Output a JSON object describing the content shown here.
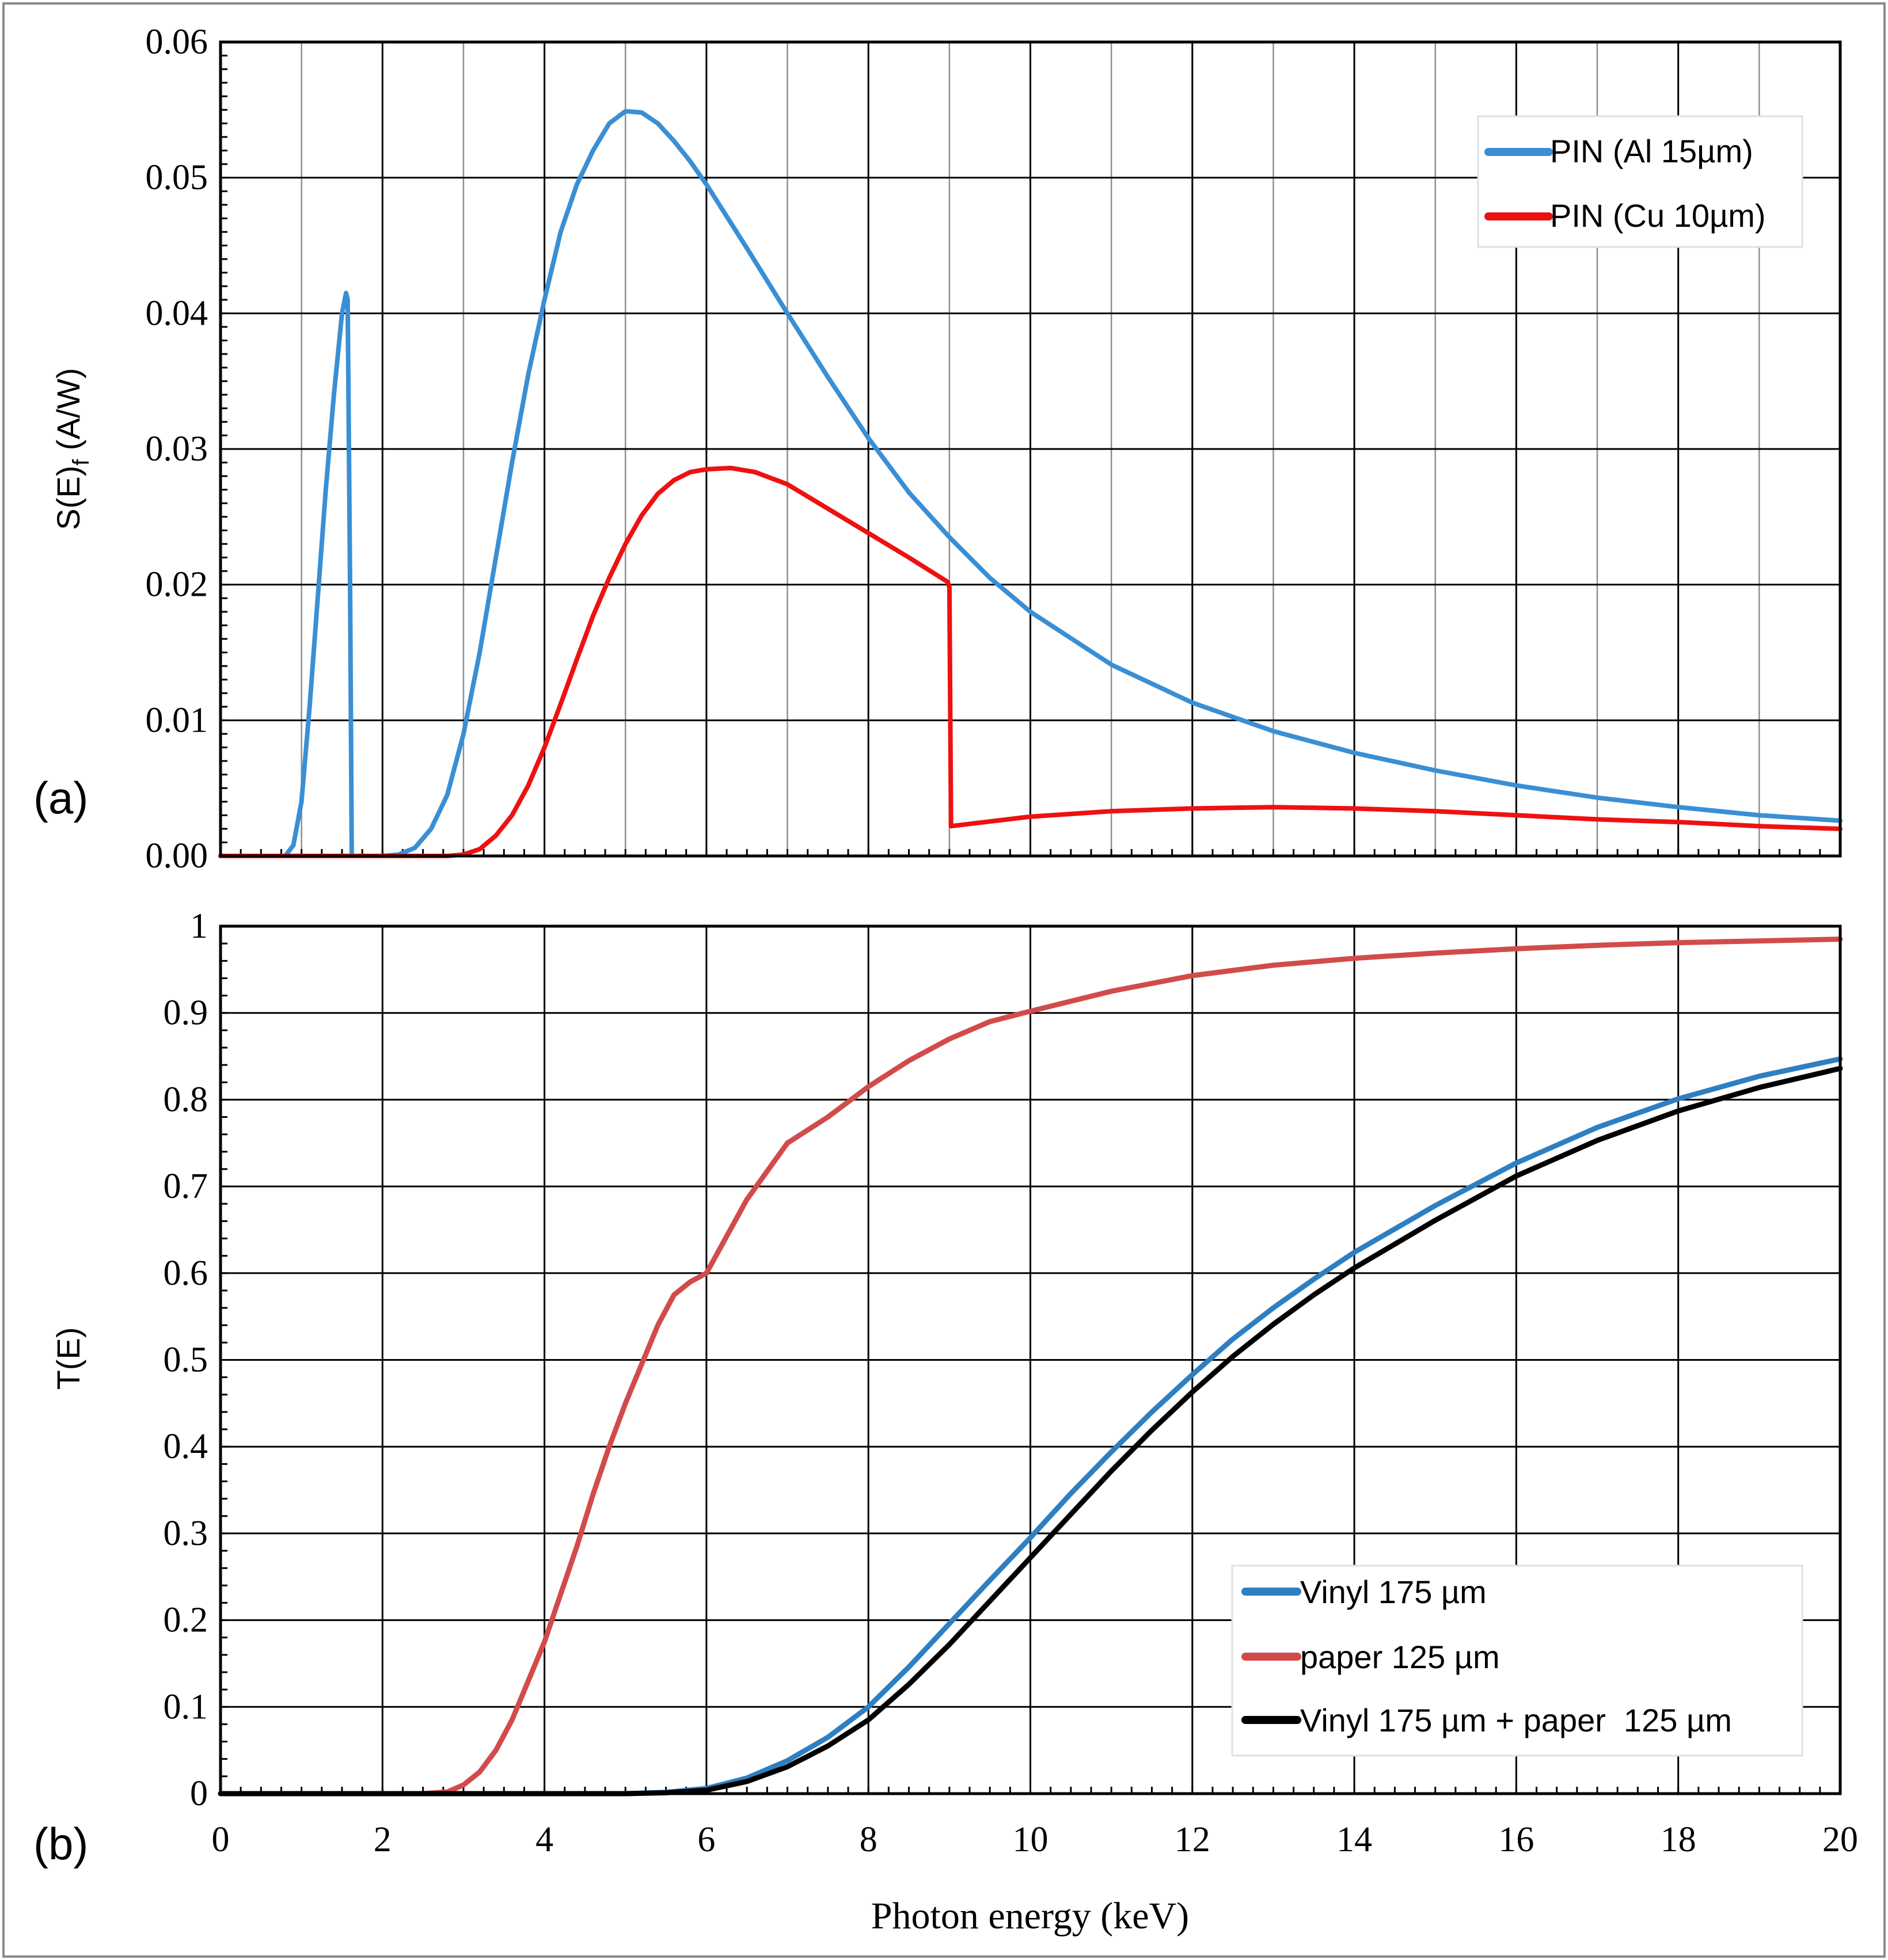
{
  "chart_data": [
    {
      "panel_label": "(a)",
      "type": "line",
      "title": "",
      "xlabel": "",
      "ylabel": "S(E)",
      "ylabel_subscript": "f",
      "ylabel_unit": "(A/W)",
      "xlim": [
        0,
        20
      ],
      "ylim": [
        0,
        0.06
      ],
      "x_ticks": [
        0,
        2,
        4,
        6,
        8,
        10,
        12,
        14,
        16,
        18,
        20
      ],
      "y_ticks": [
        0,
        0.01,
        0.02,
        0.03,
        0.04,
        0.05,
        0.06
      ],
      "y_tick_labels": [
        "0.00",
        "0.01",
        "0.02",
        "0.03",
        "0.04",
        "0.05",
        "0.06"
      ],
      "grid": true,
      "legend_position": "top-right",
      "series": [
        {
          "name": "PIN (Al 15µm)",
          "color": "#3a8fd4",
          "x": [
            0,
            0.8,
            0.9,
            1.0,
            1.1,
            1.2,
            1.3,
            1.4,
            1.5,
            1.55,
            1.57,
            1.6,
            1.62,
            1.8,
            2.0,
            2.2,
            2.4,
            2.6,
            2.8,
            3.0,
            3.2,
            3.4,
            3.6,
            3.8,
            4.0,
            4.2,
            4.4,
            4.6,
            4.8,
            5.0,
            5.2,
            5.4,
            5.6,
            5.8,
            6.0,
            6.5,
            7.0,
            7.5,
            8.0,
            8.5,
            9.0,
            9.5,
            10.0,
            11.0,
            12.0,
            13.0,
            14.0,
            15.0,
            16.0,
            17.0,
            18.0,
            19.0,
            20.0
          ],
          "values": [
            0,
            0,
            0.0008,
            0.004,
            0.011,
            0.019,
            0.027,
            0.034,
            0.04,
            0.0415,
            0.041,
            0.02,
            0,
            0,
            0,
            0.0001,
            0.0006,
            0.002,
            0.0045,
            0.009,
            0.015,
            0.022,
            0.029,
            0.0355,
            0.041,
            0.046,
            0.0495,
            0.052,
            0.054,
            0.0549,
            0.0548,
            0.054,
            0.0527,
            0.0512,
            0.0495,
            0.0448,
            0.04,
            0.0353,
            0.0308,
            0.0268,
            0.0235,
            0.0205,
            0.018,
            0.0141,
            0.0113,
            0.0092,
            0.0076,
            0.0063,
            0.0052,
            0.0043,
            0.0036,
            0.003,
            0.0026
          ]
        },
        {
          "name": "PIN (Cu 10µm)",
          "color": "#ee1111",
          "x": [
            0,
            2.8,
            3.0,
            3.2,
            3.4,
            3.6,
            3.8,
            4.0,
            4.2,
            4.4,
            4.6,
            4.8,
            5.0,
            5.2,
            5.4,
            5.6,
            5.8,
            6.0,
            6.3,
            6.6,
            7.0,
            7.5,
            8.0,
            8.5,
            8.98,
            9.0,
            9.02,
            10.0,
            11.0,
            12.0,
            13.0,
            14.0,
            15.0,
            16.0,
            17.0,
            18.0,
            19.0,
            20.0
          ],
          "values": [
            0,
            0,
            0.0001,
            0.0005,
            0.0015,
            0.003,
            0.0052,
            0.008,
            0.0112,
            0.0145,
            0.0177,
            0.0205,
            0.023,
            0.0251,
            0.0267,
            0.0277,
            0.0283,
            0.0285,
            0.0286,
            0.0283,
            0.0274,
            0.0256,
            0.0238,
            0.022,
            0.0202,
            0.0198,
            0.0022,
            0.0029,
            0.0033,
            0.0035,
            0.0036,
            0.0035,
            0.0033,
            0.003,
            0.0027,
            0.0025,
            0.0022,
            0.002
          ]
        }
      ]
    },
    {
      "panel_label": "(b)",
      "type": "line",
      "title": "",
      "xlabel": "Photon energy (keV)",
      "ylabel": "T(E)",
      "xlim": [
        0,
        20
      ],
      "ylim": [
        0,
        1
      ],
      "x_ticks": [
        0,
        2,
        4,
        6,
        8,
        10,
        12,
        14,
        16,
        18,
        20
      ],
      "x_tick_labels": [
        "0",
        "2",
        "4",
        "6",
        "8",
        "10",
        "12",
        "14",
        "16",
        "18",
        "20"
      ],
      "y_ticks": [
        0,
        0.1,
        0.2,
        0.3,
        0.4,
        0.5,
        0.6,
        0.7,
        0.8,
        0.9,
        1
      ],
      "y_tick_labels": [
        "0",
        "0.1",
        "0.2",
        "0.3",
        "0.4",
        "0.5",
        "0.6",
        "0.7",
        "0.8",
        "0.9",
        "1"
      ],
      "grid": true,
      "legend_position": "bottom-right",
      "series": [
        {
          "name": "Vinyl 175 µm",
          "color": "#2e7fc2",
          "x": [
            0,
            5.0,
            5.5,
            6.0,
            6.5,
            7.0,
            7.5,
            8.0,
            8.5,
            9.0,
            9.5,
            10.0,
            10.5,
            11.0,
            11.5,
            12.0,
            12.5,
            13.0,
            13.5,
            14.0,
            15.0,
            16.0,
            17.0,
            18.0,
            19.0,
            20.0
          ],
          "values": [
            0,
            0,
            0.0015,
            0.006,
            0.018,
            0.038,
            0.065,
            0.1,
            0.146,
            0.196,
            0.246,
            0.295,
            0.346,
            0.394,
            0.44,
            0.483,
            0.524,
            0.56,
            0.593,
            0.624,
            0.678,
            0.727,
            0.768,
            0.801,
            0.827,
            0.847
          ]
        },
        {
          "name": "paper 125 µm",
          "color": "#d24b4b",
          "x": [
            0,
            2.5,
            2.8,
            3.0,
            3.2,
            3.4,
            3.6,
            3.8,
            4.0,
            4.2,
            4.4,
            4.6,
            4.8,
            5.0,
            5.2,
            5.4,
            5.6,
            5.8,
            6.0,
            6.5,
            7.0,
            7.5,
            8.0,
            8.5,
            9.0,
            9.5,
            10.0,
            11.0,
            12.0,
            13.0,
            14.0,
            15.0,
            16.0,
            17.0,
            18.0,
            19.0,
            20.0
          ],
          "values": [
            0,
            0,
            0.002,
            0.01,
            0.025,
            0.05,
            0.085,
            0.13,
            0.175,
            0.23,
            0.285,
            0.345,
            0.4,
            0.45,
            0.495,
            0.54,
            0.575,
            0.59,
            0.6,
            0.685,
            0.75,
            0.78,
            0.815,
            0.845,
            0.87,
            0.89,
            0.902,
            0.925,
            0.943,
            0.955,
            0.963,
            0.969,
            0.974,
            0.978,
            0.981,
            0.983,
            0.985
          ]
        },
        {
          "name": "Vinyl 175 µm + paper  125 µm",
          "color": "#000000",
          "x": [
            0,
            5.0,
            5.5,
            6.0,
            6.5,
            7.0,
            7.5,
            8.0,
            8.5,
            9.0,
            9.5,
            10.0,
            10.5,
            11.0,
            11.5,
            12.0,
            12.5,
            13.0,
            13.5,
            14.0,
            15.0,
            16.0,
            17.0,
            18.0,
            19.0,
            20.0
          ],
          "values": [
            0,
            0,
            0.001,
            0.004,
            0.014,
            0.031,
            0.055,
            0.085,
            0.126,
            0.172,
            0.222,
            0.272,
            0.322,
            0.372,
            0.419,
            0.463,
            0.504,
            0.541,
            0.575,
            0.606,
            0.661,
            0.712,
            0.753,
            0.787,
            0.814,
            0.836
          ]
        }
      ]
    }
  ]
}
